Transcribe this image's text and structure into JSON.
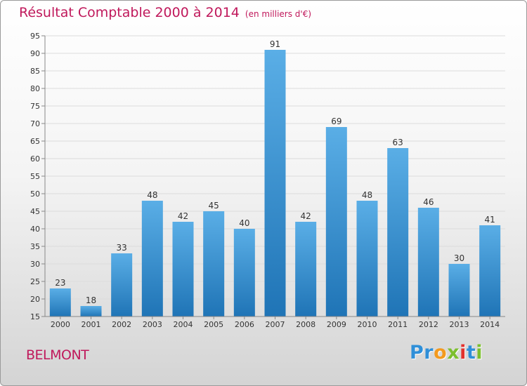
{
  "title": "Résultat Comptable 2000 à 2014",
  "unit_label": "(en milliers d'€)",
  "commune": "BELMONT",
  "logo": {
    "letters": [
      "P",
      "r",
      "o",
      "x",
      "i",
      "t",
      "i"
    ],
    "colors": [
      "#2f8fd8",
      "#2f8fd8",
      "#f39a1e",
      "#7cbf2e",
      "#e2312d",
      "#2f8fd8",
      "#7cbf2e"
    ]
  },
  "colors": {
    "bar_top": "#5aaee6",
    "bar_bottom": "#1f74b6",
    "title": "#c0185b"
  },
  "chart_data": {
    "type": "bar",
    "title": "Résultat Comptable 2000 à 2014",
    "ylabel": "en milliers d'€",
    "categories": [
      "2000",
      "2001",
      "2002",
      "2003",
      "2004",
      "2005",
      "2006",
      "2007",
      "2008",
      "2009",
      "2010",
      "2011",
      "2012",
      "2013",
      "2014"
    ],
    "values": [
      23,
      18,
      33,
      48,
      42,
      45,
      40,
      91,
      42,
      69,
      48,
      63,
      46,
      30,
      41
    ],
    "ylim": [
      15,
      95
    ],
    "yticks": [
      15,
      20,
      25,
      30,
      35,
      40,
      45,
      50,
      55,
      60,
      65,
      70,
      75,
      80,
      85,
      90,
      95
    ],
    "grid": true,
    "show_value_labels": true
  }
}
